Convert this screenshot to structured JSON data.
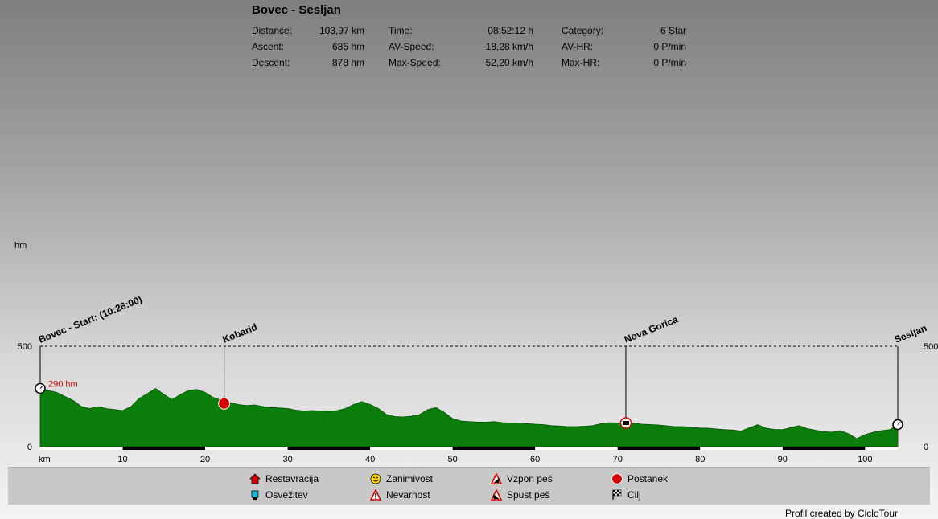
{
  "title": "Bovec - Sesljan",
  "stats": [
    {
      "label": "Distance:",
      "value": "103,97 km"
    },
    {
      "label": "Ascent:",
      "value": "685 hm"
    },
    {
      "label": "Descent:",
      "value": "878 hm"
    },
    {
      "label": "Time:",
      "value": "08:52:12 h"
    },
    {
      "label": "AV-Speed:",
      "value": "18,28 km/h"
    },
    {
      "label": "Max-Speed:",
      "value": "52,20 km/h"
    },
    {
      "label": "Category:",
      "value": "6 Star"
    },
    {
      "label": "AV-HR:",
      "value": "0 P/min"
    },
    {
      "label": "Max-HR:",
      "value": "0 P/min"
    }
  ],
  "legend": [
    {
      "label": "Restavracija",
      "icon": "house-icon"
    },
    {
      "label": "Osvežitev",
      "icon": "cup-icon"
    },
    {
      "label": "Zanimivost",
      "icon": "smiley-icon"
    },
    {
      "label": "Nevarnost",
      "icon": "warning-icon"
    },
    {
      "label": "Vzpon peš",
      "icon": "climb-icon"
    },
    {
      "label": "Spust peš",
      "icon": "descent-icon"
    },
    {
      "label": "Postanek",
      "icon": "stop-icon"
    },
    {
      "label": "Cilj",
      "icon": "finish-flag-icon"
    }
  ],
  "credit": "Profil created by CicloTour",
  "chart_data": {
    "type": "area",
    "xlabel": "km",
    "ylabel": "hm",
    "xlim": [
      0,
      103.97
    ],
    "ylim": [
      0,
      500
    ],
    "xticks": [
      10,
      20,
      30,
      40,
      50,
      60,
      70,
      80,
      90,
      100
    ],
    "yticks": [
      0,
      500
    ],
    "start_label": "290 hm",
    "fill_color": "#0a7d0a",
    "x": [
      0,
      1,
      2,
      3,
      4,
      5,
      6,
      7,
      8,
      9,
      10,
      11,
      12,
      13,
      14,
      15,
      16,
      17,
      18,
      19,
      20,
      21,
      22,
      23,
      24,
      25,
      26,
      27,
      28,
      29,
      30,
      31,
      32,
      33,
      34,
      35,
      36,
      37,
      38,
      39,
      40,
      41,
      42,
      43,
      44,
      45,
      46,
      47,
      48,
      49,
      50,
      51,
      52,
      53,
      54,
      55,
      56,
      57,
      58,
      59,
      60,
      61,
      62,
      63,
      64,
      65,
      66,
      67,
      68,
      69,
      70,
      71,
      72,
      73,
      74,
      75,
      76,
      77,
      78,
      79,
      80,
      81,
      82,
      83,
      84,
      85,
      86,
      87,
      88,
      89,
      90,
      91,
      92,
      93,
      94,
      95,
      96,
      97,
      98,
      99,
      100,
      101,
      102,
      103,
      103.97
    ],
    "y": [
      290,
      280,
      270,
      250,
      230,
      200,
      190,
      200,
      190,
      185,
      180,
      200,
      240,
      265,
      290,
      260,
      235,
      260,
      280,
      285,
      270,
      245,
      230,
      220,
      210,
      205,
      208,
      200,
      195,
      193,
      190,
      182,
      178,
      180,
      178,
      175,
      180,
      190,
      210,
      225,
      210,
      190,
      160,
      150,
      148,
      152,
      160,
      185,
      195,
      170,
      140,
      128,
      125,
      123,
      122,
      125,
      120,
      118,
      118,
      115,
      112,
      110,
      105,
      103,
      100,
      100,
      102,
      105,
      115,
      120,
      118,
      120,
      117,
      112,
      110,
      108,
      104,
      100,
      100,
      96,
      93,
      92,
      88,
      85,
      83,
      78,
      95,
      110,
      92,
      86,
      85,
      95,
      105,
      90,
      82,
      75,
      72,
      80,
      65,
      40,
      60,
      72,
      80,
      85,
      110
    ],
    "waypoints": [
      {
        "km": 0,
        "label": "Bovec - Start: (10:26:00)",
        "icon": "clock-icon",
        "hm": 290
      },
      {
        "km": 22.3,
        "label": "Kobarid",
        "icon": "stop-icon",
        "hm": 215
      },
      {
        "km": 71,
        "label": "Nova Gorica",
        "icon": "bus-icon",
        "hm": 118
      },
      {
        "km": 103.97,
        "label": "Sesljan",
        "icon": "clock-icon",
        "hm": 110
      }
    ]
  }
}
